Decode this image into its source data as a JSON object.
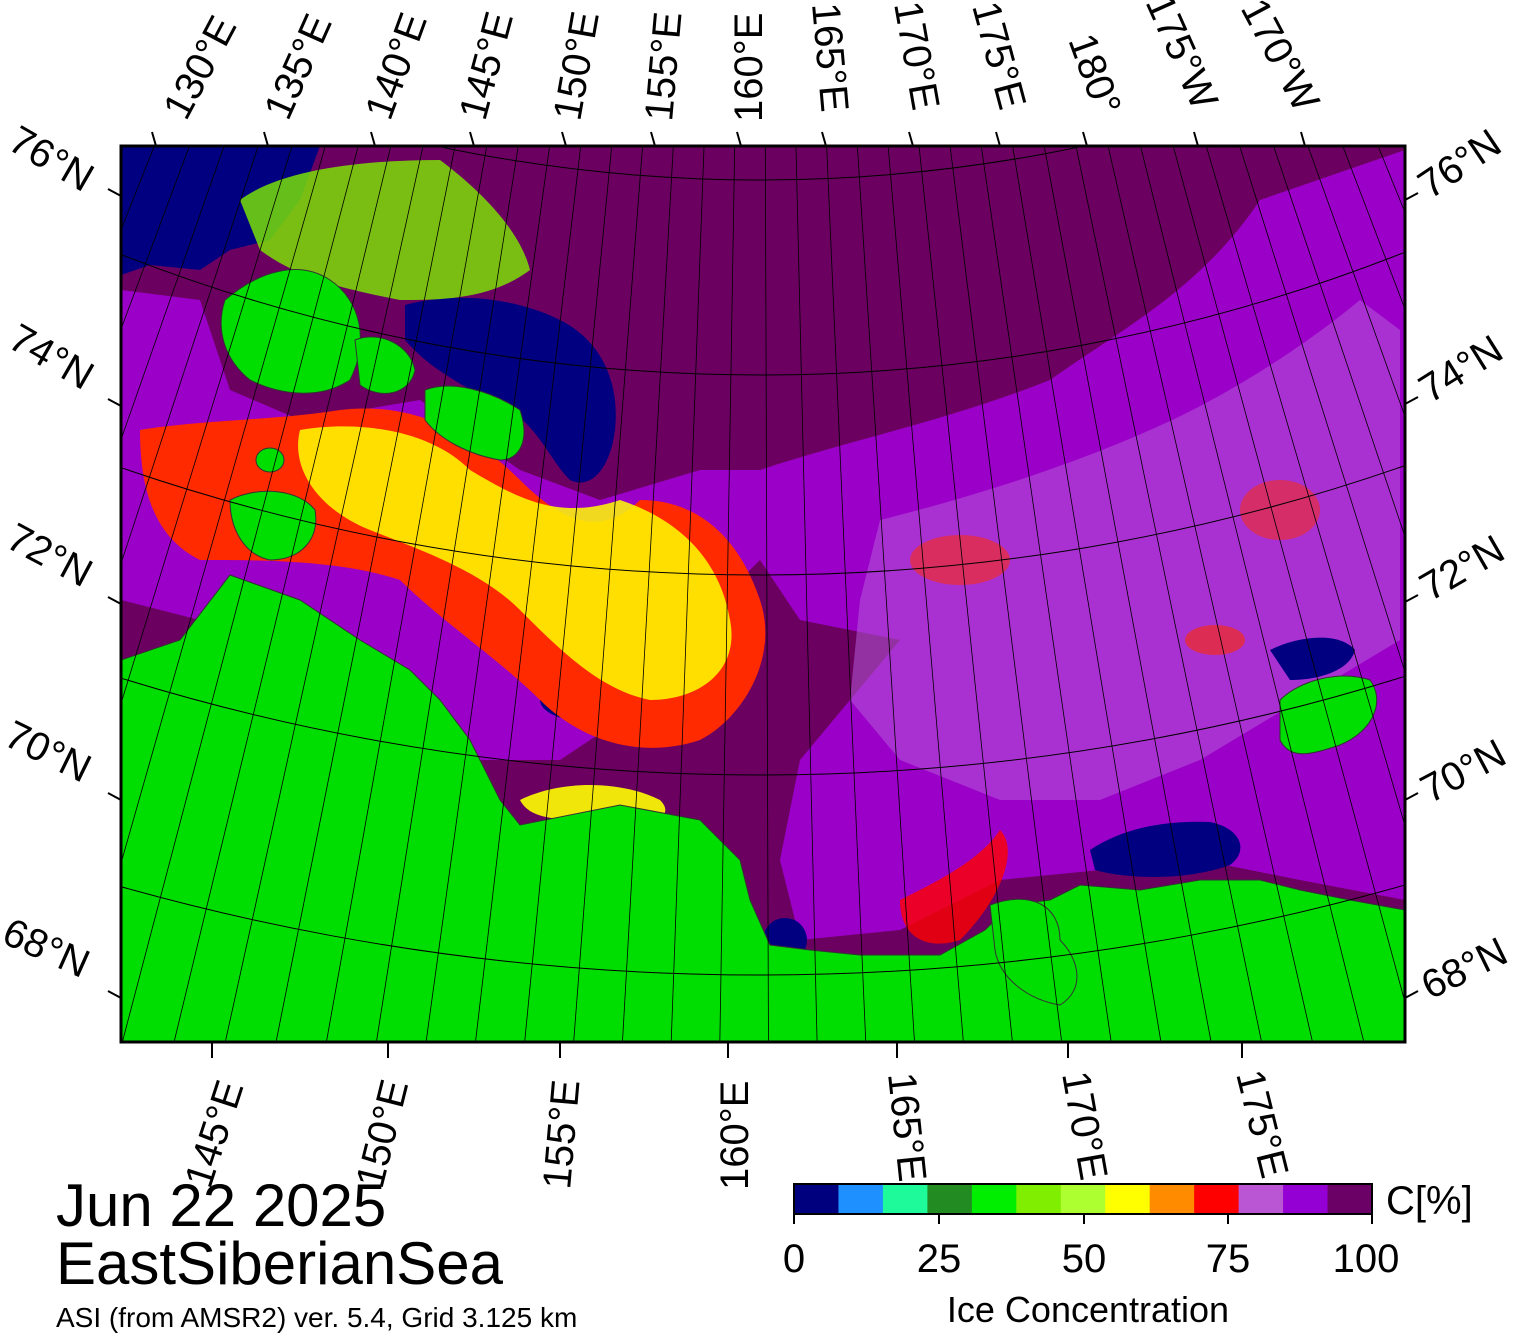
{
  "date": "Jun 22 2025",
  "region": "EastSiberianSea",
  "product": "ASI (from AMSR2) ver. 5.4,  Grid 3.125 km",
  "top_lon_labels": [
    "130°E",
    "135°E",
    "140°E",
    "145°E",
    "150°E",
    "155°E",
    "160°E",
    "165°E",
    "170°E",
    "175°E",
    "180°",
    "175°W",
    "170°W"
  ],
  "bottom_lon_labels": [
    "145°E",
    "150°E",
    "155°E",
    "160°E",
    "165°E",
    "170°E",
    "175°E"
  ],
  "left_lat_labels": [
    "76°N",
    "74°N",
    "72°N",
    "70°N",
    "68°N"
  ],
  "right_lat_labels": [
    "76°N",
    "74°N",
    "72°N",
    "70°N",
    "68°N"
  ],
  "colorbar": {
    "unit_label": "C[%]",
    "title": "Ice Concentration",
    "ticks": [
      "0",
      "25",
      "50",
      "75",
      "100"
    ],
    "colors": [
      "#00007f",
      "#1e90ff",
      "#1efa9a",
      "#228b22",
      "#00ee00",
      "#7fee00",
      "#adff2f",
      "#ffff00",
      "#ff8c00",
      "#ff0000",
      "#ba55d3",
      "#9400d3",
      "#6b0066"
    ]
  },
  "colors": {
    "land": "#00dd00",
    "open_water": "#000080",
    "full_ice": "#6b0060",
    "high_ice": "#9b00c8"
  }
}
